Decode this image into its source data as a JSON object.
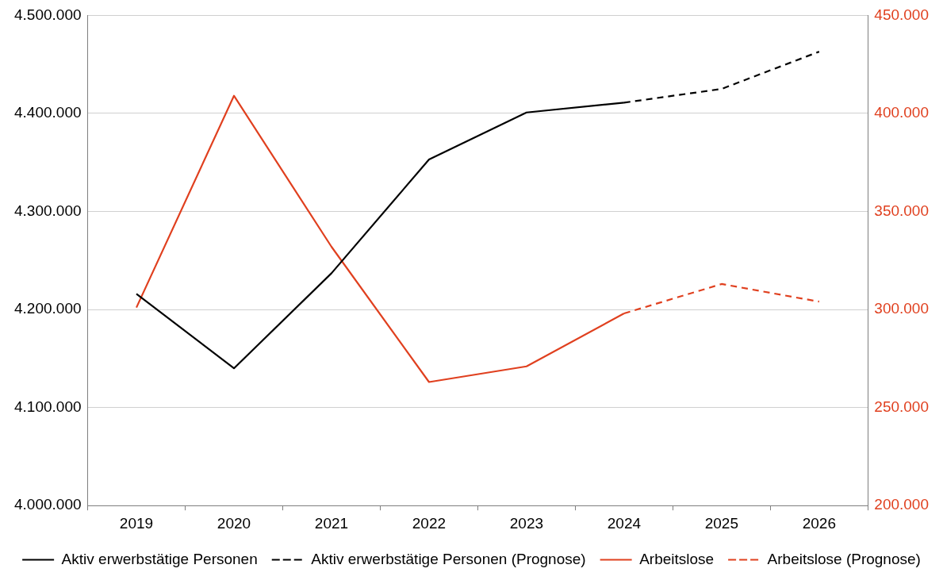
{
  "chart_data": {
    "type": "line",
    "categories": [
      "2019",
      "2020",
      "2021",
      "2022",
      "2023",
      "2024",
      "2025",
      "2026"
    ],
    "series": [
      {
        "name": "Aktiv erwerbstätige Personen",
        "color": "#000000",
        "line_style": "solid",
        "values": [
          4216000,
          4140000,
          4237000,
          4353000,
          4401000,
          4411000,
          null,
          null
        ]
      },
      {
        "name": "Aktiv erwerbstätige Personen (Prognose)",
        "color": "#000000",
        "line_style": "dashed",
        "values": [
          null,
          null,
          null,
          null,
          null,
          4411000,
          4425000,
          4463000
        ]
      },
      {
        "name": "Arbeitslose",
        "color": "#e0401f",
        "line_style": "solid",
        "axis": "y2",
        "values": [
          301000,
          409000,
          332000,
          263000,
          271000,
          298000,
          null,
          null
        ]
      },
      {
        "name": "Arbeitslose (Prognose)",
        "color": "#e0401f",
        "line_style": "dashed",
        "axis": "y2",
        "values": [
          null,
          null,
          null,
          null,
          null,
          298000,
          313000,
          304000
        ]
      }
    ],
    "ylim": [
      4000000,
      4500000
    ],
    "yticks": [
      {
        "value": 4000000,
        "label": "4.000.000"
      },
      {
        "value": 4100000,
        "label": "4.100.000"
      },
      {
        "value": 4200000,
        "label": "4.200.000"
      },
      {
        "value": 4300000,
        "label": "4.300.000"
      },
      {
        "value": 4400000,
        "label": "4.400.000"
      },
      {
        "value": 4500000,
        "label": "4.500.000"
      }
    ],
    "y2lim": [
      200000,
      450000
    ],
    "y2ticks": [
      {
        "value": 200000,
        "label": "200.000"
      },
      {
        "value": 250000,
        "label": "250.000"
      },
      {
        "value": 300000,
        "label": "300.000"
      },
      {
        "value": 350000,
        "label": "350.000"
      },
      {
        "value": 400000,
        "label": "400.000"
      },
      {
        "value": 450000,
        "label": "450.000"
      }
    ],
    "grid": "y",
    "legend": "bottom",
    "marker": "none"
  }
}
